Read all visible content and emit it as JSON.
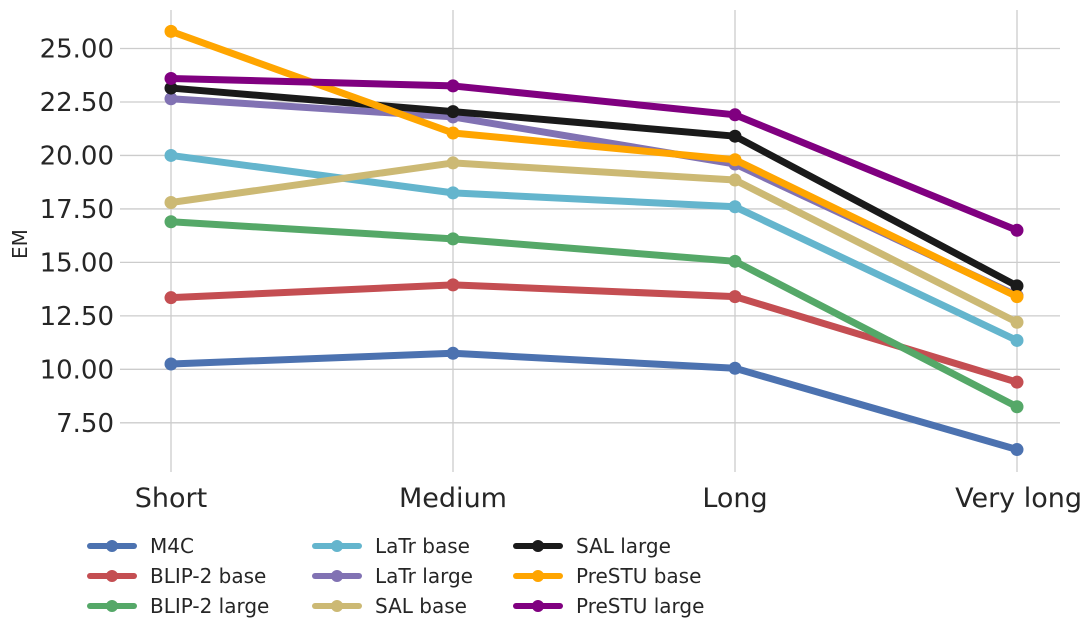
{
  "chart_data": {
    "type": "line",
    "title": "",
    "xlabel": "",
    "ylabel": "EM",
    "categories": [
      "Short",
      "Medium",
      "Long",
      "Very long"
    ],
    "ylim": [
      5.2,
      26.8
    ],
    "yticks": [
      "7.50",
      "10.00",
      "12.50",
      "15.00",
      "17.50",
      "20.00",
      "22.50",
      "25.00"
    ],
    "grid": true,
    "legend_position": "bottom",
    "series": [
      {
        "name": "M4C",
        "color": "#4c72b0",
        "values": [
          10.25,
          10.75,
          10.05,
          6.25
        ]
      },
      {
        "name": "BLIP-2 base",
        "color": "#c44e52",
        "values": [
          13.35,
          13.95,
          13.4,
          9.4
        ]
      },
      {
        "name": "BLIP-2 large",
        "color": "#55a868",
        "values": [
          16.9,
          16.1,
          15.05,
          8.25
        ]
      },
      {
        "name": "LaTr base",
        "color": "#64b5cd",
        "values": [
          20.0,
          18.25,
          17.6,
          11.35
        ]
      },
      {
        "name": "LaTr large",
        "color": "#8172b3",
        "values": [
          22.65,
          21.8,
          19.6,
          13.45
        ]
      },
      {
        "name": "SAL base",
        "color": "#ccb974",
        "values": [
          17.8,
          19.65,
          18.85,
          12.2
        ]
      },
      {
        "name": "SAL large",
        "color": "#1a1a1a",
        "values": [
          23.15,
          22.05,
          20.9,
          13.9
        ]
      },
      {
        "name": "PreSTU base",
        "color": "#ffa500",
        "values": [
          25.8,
          21.05,
          19.8,
          13.4
        ]
      },
      {
        "name": "PreSTU large",
        "color": "#800080",
        "values": [
          23.6,
          23.25,
          21.9,
          16.5
        ]
      }
    ]
  }
}
